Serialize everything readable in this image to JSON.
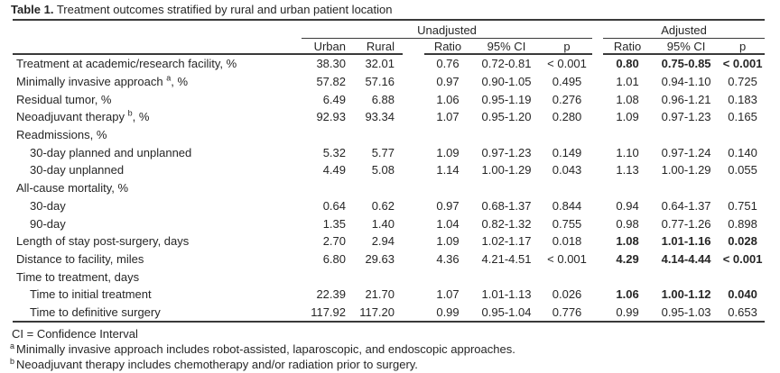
{
  "colors": {
    "text": "#262626",
    "rule": "#3a3a3a",
    "background": "#ffffff"
  },
  "table": {
    "title_label": "Table 1.",
    "title_text": " Treatment outcomes stratified by rural and urban patient location",
    "column_groups": {
      "unadjusted": "Unadjusted",
      "adjusted": "Adjusted"
    },
    "columns": {
      "urban": "Urban",
      "rural": "Rural",
      "ratio": "Ratio",
      "ci": "95% CI",
      "p": "p"
    },
    "rows": [
      {
        "label": "Treatment at academic/research facility, %",
        "marker": "",
        "label_suffix": "",
        "indent": false,
        "section": false,
        "urban": "38.30",
        "rural": "32.01",
        "u_ratio": "0.76",
        "u_ci": "0.72-0.81",
        "u_p": "< 0.001",
        "a_ratio": "0.80",
        "a_ci": "0.75-0.85",
        "a_p": "< 0.001",
        "a_bold": true
      },
      {
        "label": "Minimally invasive approach",
        "marker": "a",
        "label_suffix": ", %",
        "indent": false,
        "section": false,
        "urban": "57.82",
        "rural": "57.16",
        "u_ratio": "0.97",
        "u_ci": "0.90-1.05",
        "u_p": "0.495",
        "a_ratio": "1.01",
        "a_ci": "0.94-1.10",
        "a_p": "0.725",
        "a_bold": false
      },
      {
        "label": "Residual tumor, %",
        "marker": "",
        "label_suffix": "",
        "indent": false,
        "section": false,
        "urban": "6.49",
        "rural": "6.88",
        "u_ratio": "1.06",
        "u_ci": "0.95-1.19",
        "u_p": "0.276",
        "a_ratio": "1.08",
        "a_ci": "0.96-1.21",
        "a_p": "0.183",
        "a_bold": false
      },
      {
        "label": "Neoadjuvant therapy",
        "marker": "b",
        "label_suffix": ", %",
        "indent": false,
        "section": false,
        "urban": "92.93",
        "rural": "93.34",
        "u_ratio": "1.07",
        "u_ci": "0.95-1.20",
        "u_p": "0.280",
        "a_ratio": "1.09",
        "a_ci": "0.97-1.23",
        "a_p": "0.165",
        "a_bold": false
      },
      {
        "label": "Readmissions, %",
        "marker": "",
        "label_suffix": "",
        "indent": false,
        "section": true,
        "urban": "",
        "rural": "",
        "u_ratio": "",
        "u_ci": "",
        "u_p": "",
        "a_ratio": "",
        "a_ci": "",
        "a_p": "",
        "a_bold": false
      },
      {
        "label": "30-day planned and unplanned",
        "marker": "",
        "label_suffix": "",
        "indent": true,
        "section": false,
        "urban": "5.32",
        "rural": "5.77",
        "u_ratio": "1.09",
        "u_ci": "0.97-1.23",
        "u_p": "0.149",
        "a_ratio": "1.10",
        "a_ci": "0.97-1.24",
        "a_p": "0.140",
        "a_bold": false
      },
      {
        "label": "30-day unplanned",
        "marker": "",
        "label_suffix": "",
        "indent": true,
        "section": false,
        "urban": "4.49",
        "rural": "5.08",
        "u_ratio": "1.14",
        "u_ci": "1.00-1.29",
        "u_p": "0.043",
        "a_ratio": "1.13",
        "a_ci": "1.00-1.29",
        "a_p": "0.055",
        "a_bold": false
      },
      {
        "label": "All-cause mortality, %",
        "marker": "",
        "label_suffix": "",
        "indent": false,
        "section": true,
        "urban": "",
        "rural": "",
        "u_ratio": "",
        "u_ci": "",
        "u_p": "",
        "a_ratio": "",
        "a_ci": "",
        "a_p": "",
        "a_bold": false
      },
      {
        "label": "30-day",
        "marker": "",
        "label_suffix": "",
        "indent": true,
        "section": false,
        "urban": "0.64",
        "rural": "0.62",
        "u_ratio": "0.97",
        "u_ci": "0.68-1.37",
        "u_p": "0.844",
        "a_ratio": "0.94",
        "a_ci": "0.64-1.37",
        "a_p": "0.751",
        "a_bold": false
      },
      {
        "label": "90-day",
        "marker": "",
        "label_suffix": "",
        "indent": true,
        "section": false,
        "urban": "1.35",
        "rural": "1.40",
        "u_ratio": "1.04",
        "u_ci": "0.82-1.32",
        "u_p": "0.755",
        "a_ratio": "0.98",
        "a_ci": "0.77-1.26",
        "a_p": "0.898",
        "a_bold": false
      },
      {
        "label": "Length of stay post-surgery, days",
        "marker": "",
        "label_suffix": "",
        "indent": false,
        "section": false,
        "urban": "2.70",
        "rural": "2.94",
        "u_ratio": "1.09",
        "u_ci": "1.02-1.17",
        "u_p": "0.018",
        "a_ratio": "1.08",
        "a_ci": "1.01-1.16",
        "a_p": "0.028",
        "a_bold": true
      },
      {
        "label": "Distance to facility, miles",
        "marker": "",
        "label_suffix": "",
        "indent": false,
        "section": false,
        "urban": "6.80",
        "rural": "29.63",
        "u_ratio": "4.36",
        "u_ci": "4.21-4.51",
        "u_p": "< 0.001",
        "a_ratio": "4.29",
        "a_ci": "4.14-4.44",
        "a_p": "< 0.001",
        "a_bold": true
      },
      {
        "label": "Time to treatment, days",
        "marker": "",
        "label_suffix": "",
        "indent": false,
        "section": true,
        "urban": "",
        "rural": "",
        "u_ratio": "",
        "u_ci": "",
        "u_p": "",
        "a_ratio": "",
        "a_ci": "",
        "a_p": "",
        "a_bold": false
      },
      {
        "label": "Time to initial treatment",
        "marker": "",
        "label_suffix": "",
        "indent": true,
        "section": false,
        "urban": "22.39",
        "rural": "21.70",
        "u_ratio": "1.07",
        "u_ci": "1.01-1.13",
        "u_p": "0.026",
        "a_ratio": "1.06",
        "a_ci": "1.00-1.12",
        "a_p": "0.040",
        "a_bold": true
      },
      {
        "label": "Time to definitive surgery",
        "marker": "",
        "label_suffix": "",
        "indent": true,
        "section": false,
        "urban": "117.92",
        "rural": "117.20",
        "u_ratio": "0.99",
        "u_ci": "0.95-1.04",
        "u_p": "0.776",
        "a_ratio": "0.99",
        "a_ci": "0.95-1.03",
        "a_p": "0.653",
        "a_bold": false
      }
    ],
    "footnotes": [
      {
        "marker": "",
        "text": "CI = Confidence Interval"
      },
      {
        "marker": "a",
        "text": "Minimally invasive approach includes robot-assisted, laparoscopic, and endoscopic approaches."
      },
      {
        "marker": "b",
        "text": "Neoadjuvant therapy includes chemotherapy and/or radiation prior to surgery."
      }
    ]
  }
}
